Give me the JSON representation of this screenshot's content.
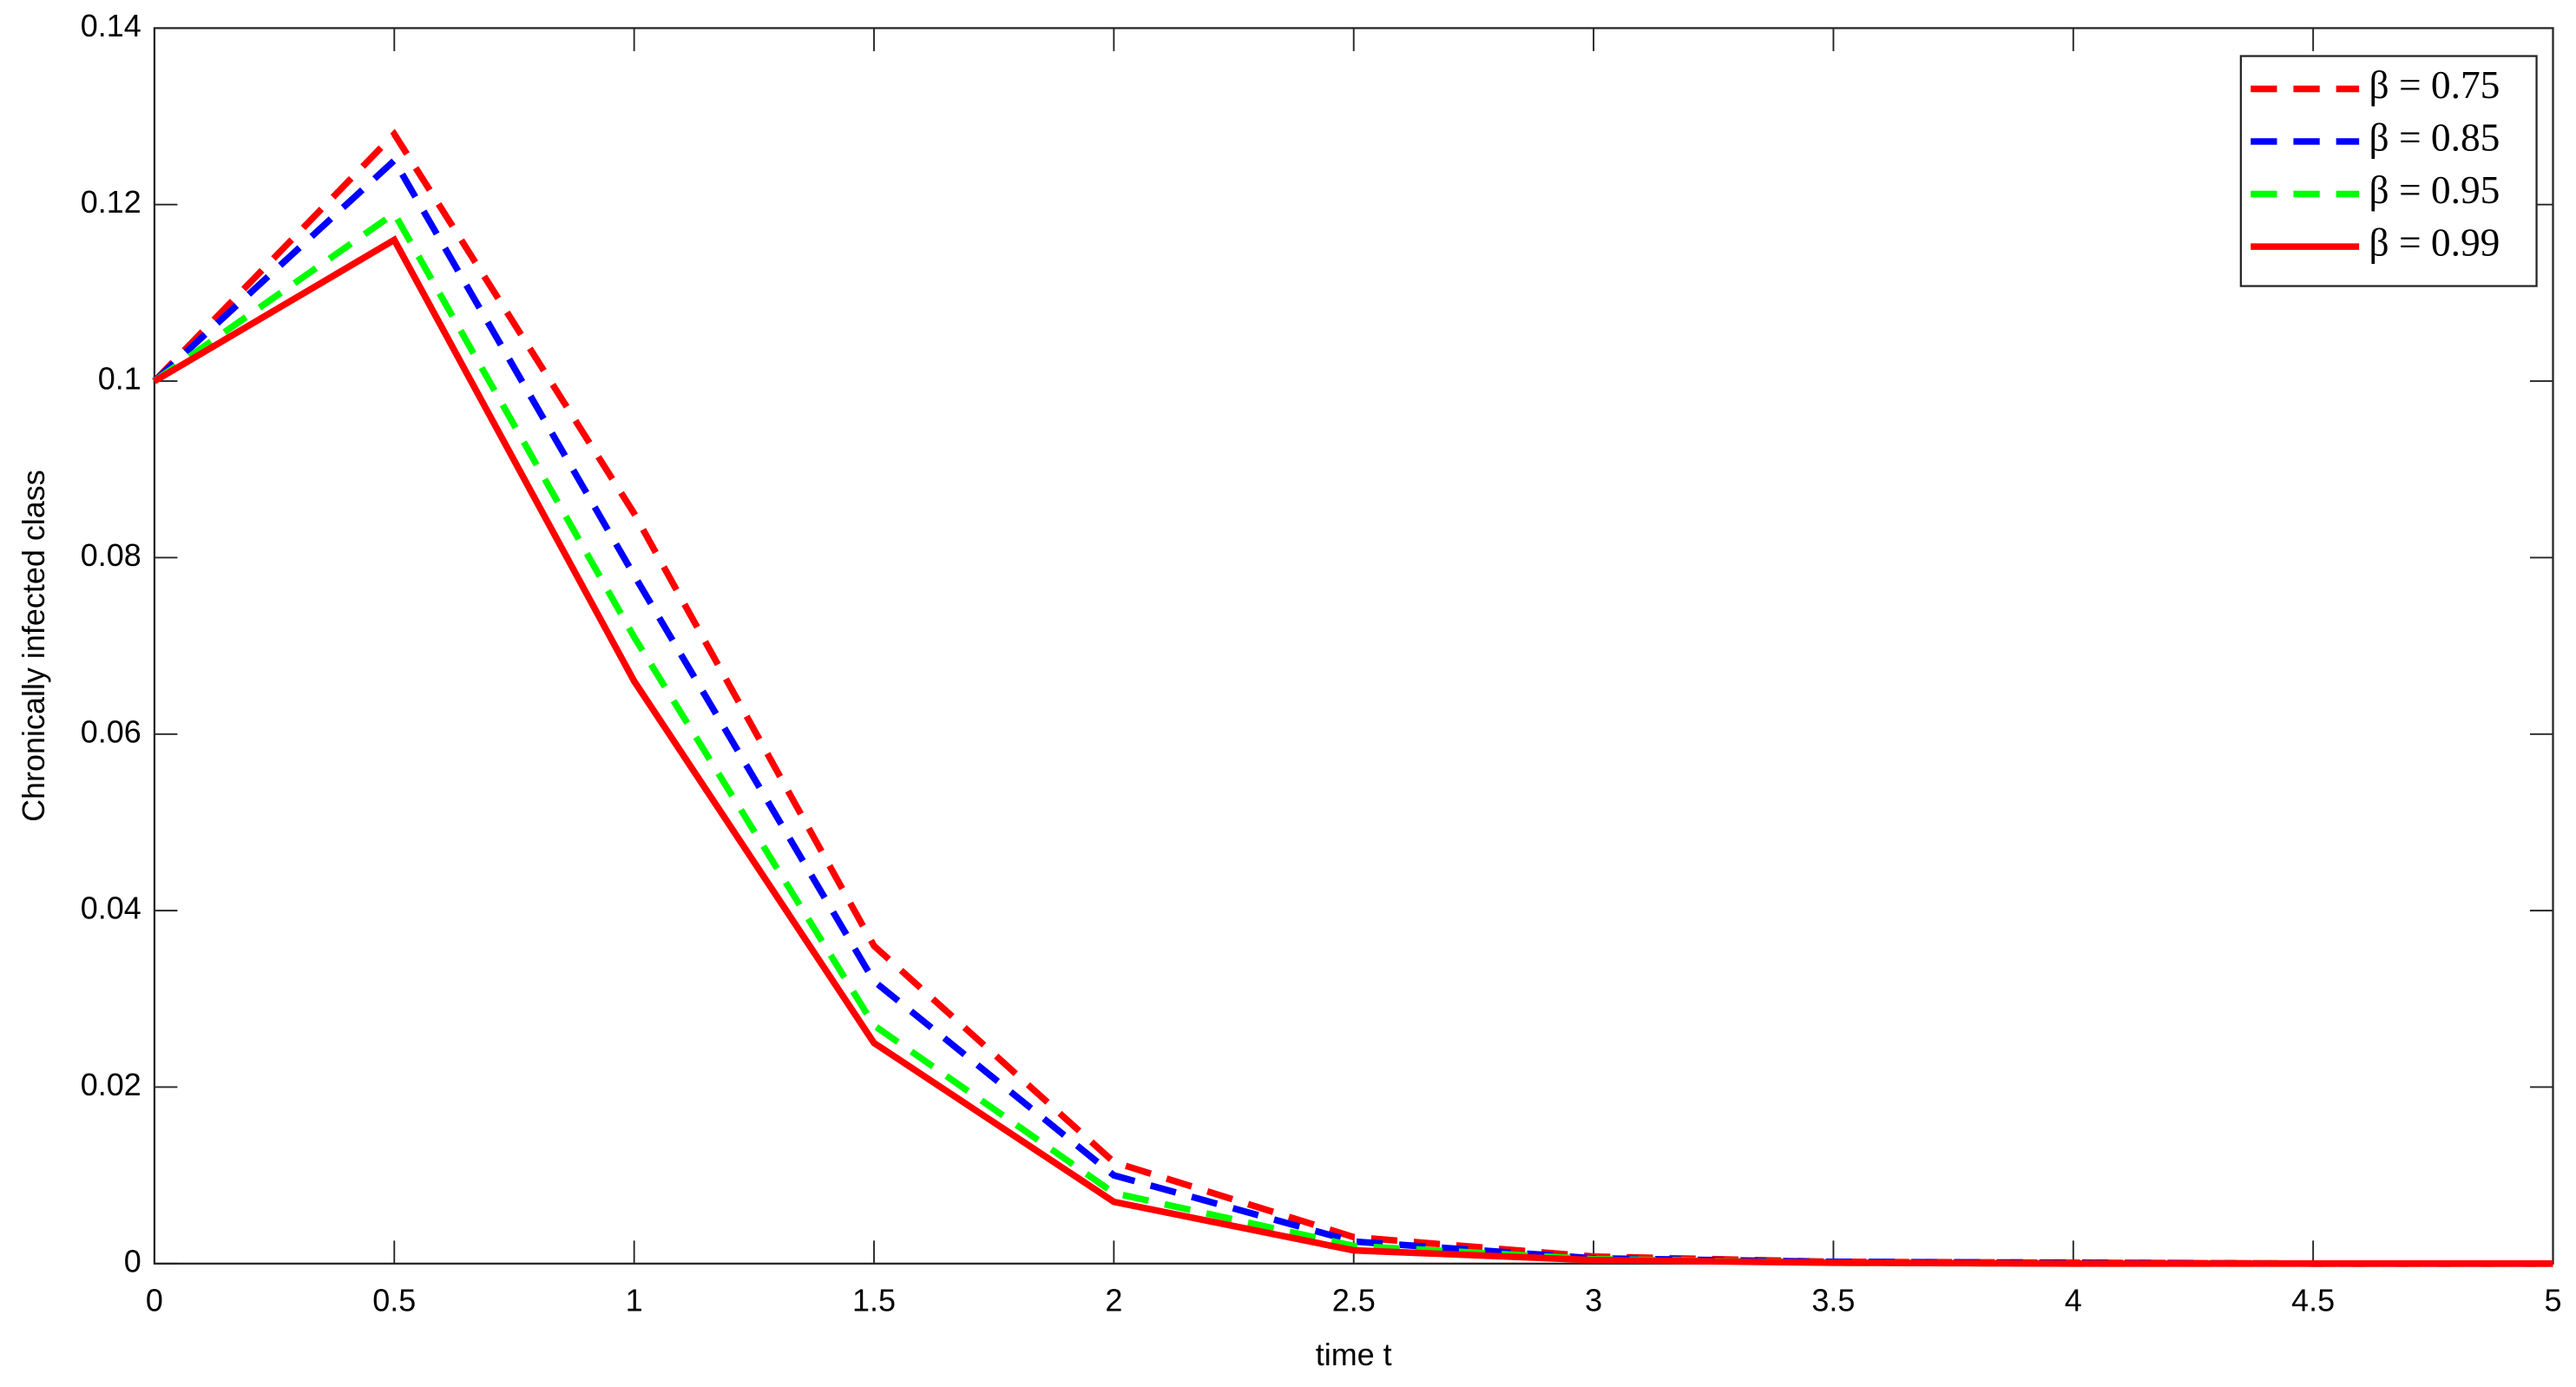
{
  "chart_data": {
    "type": "line",
    "xlabel": "time t",
    "ylabel": "Chronically infected class",
    "x": [
      0,
      0.5,
      1,
      1.5,
      2,
      2.5,
      3,
      3.5,
      4,
      4.5,
      5
    ],
    "xlim": [
      0,
      5
    ],
    "xticks": [
      0,
      0.5,
      1,
      1.5,
      2,
      2.5,
      3,
      3.5,
      4,
      4.5,
      5
    ],
    "ylim": [
      0,
      0.14
    ],
    "yticks": [
      0,
      0.02,
      0.04,
      0.06,
      0.08,
      0.1,
      0.12,
      0.14
    ],
    "legend": "upper right",
    "grid": false,
    "series": [
      {
        "name": "β = 0.75",
        "color": "#ff0000",
        "dashed": true,
        "values": [
          0.1,
          0.128,
          0.085,
          0.036,
          0.0115,
          0.003,
          0.0008,
          0.0002,
          0.0001,
          0,
          0
        ]
      },
      {
        "name": "β = 0.85",
        "color": "#0000ff",
        "dashed": true,
        "values": [
          0.1,
          0.125,
          0.078,
          0.032,
          0.01,
          0.0025,
          0.0006,
          0.0002,
          0.0001,
          0,
          0
        ]
      },
      {
        "name": "β = 0.95",
        "color": "#00ff00",
        "dashed": true,
        "values": [
          0.1,
          0.119,
          0.071,
          0.027,
          0.008,
          0.002,
          0.0005,
          0.0001,
          0,
          0,
          0
        ]
      },
      {
        "name": "β = 0.99",
        "color": "#ff0000",
        "dashed": false,
        "values": [
          0.1,
          0.116,
          0.066,
          0.025,
          0.007,
          0.0015,
          0.0004,
          0.0001,
          0,
          0,
          0
        ]
      }
    ]
  }
}
